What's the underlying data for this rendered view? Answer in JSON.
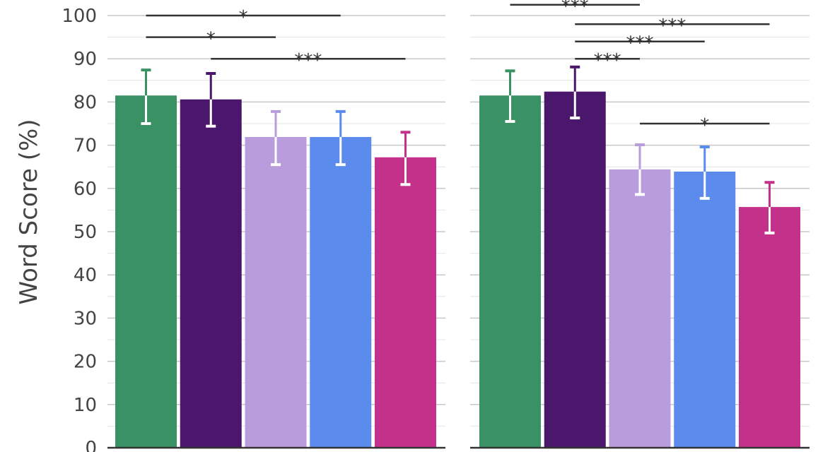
{
  "chart_data": [
    {
      "type": "bar",
      "ylabel": "Word Score (%)",
      "ylim": [
        0,
        100
      ],
      "yticks": [
        "0",
        "10",
        "20",
        "30",
        "40",
        "50",
        "60",
        "70",
        "80",
        "90",
        "100"
      ],
      "grid": true,
      "colors": [
        "#3a9163",
        "#4b176d",
        "#b99cdb",
        "#5b8bed",
        "#c4318a"
      ],
      "values": [
        81.5,
        80.6,
        71.9,
        71.9,
        67.2
      ],
      "error_upper": [
        87.4,
        86.6,
        77.8,
        77.8,
        73.0
      ],
      "error_lower": [
        75.0,
        74.4,
        65.5,
        65.5,
        60.9
      ],
      "significance": [
        {
          "from": 1,
          "to": 4,
          "level": 100,
          "label": "*"
        },
        {
          "from": 1,
          "to": 3,
          "level": 95,
          "label": "*"
        },
        {
          "from": 2,
          "to": 5,
          "level": 90,
          "label": "***"
        }
      ]
    },
    {
      "type": "bar",
      "ylim": [
        0,
        100
      ],
      "grid": true,
      "colors": [
        "#3a9163",
        "#4b176d",
        "#b99cdb",
        "#5b8bed",
        "#c4318a"
      ],
      "values": [
        81.5,
        82.4,
        64.4,
        63.9,
        55.7
      ],
      "error_upper": [
        87.2,
        88.1,
        70.1,
        69.6,
        61.4
      ],
      "error_lower": [
        75.5,
        76.3,
        58.6,
        57.7,
        49.7
      ],
      "significance": [
        {
          "from": 1,
          "to": 3,
          "level": 102.5,
          "label": "***"
        },
        {
          "from": 2,
          "to": 5,
          "level": 98,
          "label": "***"
        },
        {
          "from": 2,
          "to": 4,
          "level": 94,
          "label": "***"
        },
        {
          "from": 2,
          "to": 3,
          "level": 90,
          "label": "***"
        },
        {
          "from": 3,
          "to": 5,
          "level": 75,
          "label": "*"
        }
      ]
    }
  ]
}
